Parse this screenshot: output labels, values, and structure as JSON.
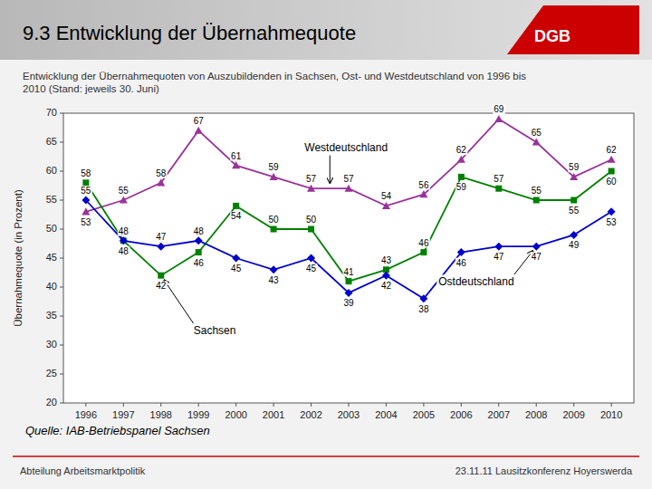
{
  "chart_data": {
    "type": "line",
    "title": "9.3 Entwicklung der Übernahmequote",
    "subtitle": "Entwicklung der Übernahmequoten von Auszubildenden in Sachsen, Ost- und Westdeutschland von 1996 bis\n2010 (Stand: jeweils 30. Juni)",
    "source": "Quelle: IAB-Betriebspanel Sachsen",
    "annotations": [
      "DGB",
      "Abteilung Arbeitsmarktpolitik",
      "23.11.11 Lausitzkonferenz Hoyerswerda"
    ],
    "x": [
      1996,
      1997,
      1998,
      1999,
      2000,
      2001,
      2002,
      2003,
      2004,
      2005,
      2006,
      2007,
      2008,
      2009,
      2010
    ],
    "xlim": [
      1995.4,
      2010.6
    ],
    "xticks": [
      1996,
      1997,
      1998,
      1999,
      2000,
      2001,
      2002,
      2003,
      2004,
      2005,
      2006,
      2007,
      2008,
      2009,
      2010
    ],
    "ylim": [
      20,
      70
    ],
    "yticks": [
      20,
      25,
      30,
      35,
      40,
      45,
      50,
      55,
      60,
      65,
      70
    ],
    "ylabel": "Übernahmequote (in Prozent)",
    "grid": false,
    "data_labels": true,
    "series": [
      {
        "name": "Westdeutschland",
        "color": "#993399",
        "marker": "triangle",
        "values": [
          53,
          55,
          58,
          67,
          61,
          59,
          57,
          57,
          54,
          56,
          62,
          69,
          65,
          59,
          62
        ]
      },
      {
        "name": "Sachsen",
        "color": "#008000",
        "marker": "square",
        "values": [
          58,
          48,
          42,
          46,
          54,
          50,
          50,
          41,
          43,
          46,
          59,
          57,
          55,
          55,
          60
        ]
      },
      {
        "name": "Ostdeutschland",
        "color": "#0000CC",
        "marker": "diamond",
        "values": [
          55,
          48,
          47,
          48,
          45,
          43,
          45,
          39,
          42,
          38,
          46,
          47,
          47,
          49,
          53
        ]
      }
    ]
  }
}
